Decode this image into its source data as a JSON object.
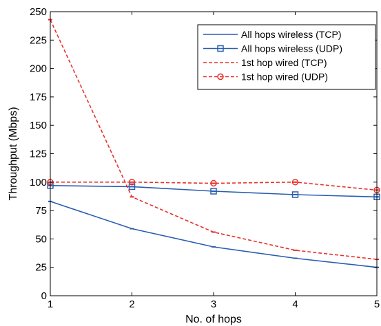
{
  "chart_data": {
    "type": "line",
    "xlabel": "No. of hops",
    "ylabel": "Throughput (Mbps)",
    "x": [
      1,
      2,
      3,
      4,
      5
    ],
    "xlim": [
      1,
      5
    ],
    "ylim": [
      0,
      250
    ],
    "xticks": [
      "1",
      "2",
      "3",
      "4",
      "5"
    ],
    "yticks": [
      "0",
      "25",
      "50",
      "75",
      "100",
      "125",
      "150",
      "175",
      "200",
      "225",
      "250"
    ],
    "grid": false,
    "legend_position": "top-right",
    "series": [
      {
        "name": "All hops wireless (TCP)",
        "values": [
          83,
          59,
          43,
          33,
          25
        ],
        "color": "#2a5db0",
        "dash": "solid",
        "marker": "none"
      },
      {
        "name": "All hops wireless (UDP)",
        "values": [
          97,
          96,
          92,
          89,
          87
        ],
        "color": "#2a5db0",
        "dash": "solid",
        "marker": "square"
      },
      {
        "name": "1st hop wired (TCP)",
        "values": [
          243,
          87,
          56,
          40,
          32
        ],
        "color": "#e8302a",
        "dash": "dashed",
        "marker": "none"
      },
      {
        "name": "1st hop wired (UDP)",
        "values": [
          100,
          100,
          99,
          100,
          93
        ],
        "color": "#e8302a",
        "dash": "dashed",
        "marker": "circle"
      }
    ]
  }
}
